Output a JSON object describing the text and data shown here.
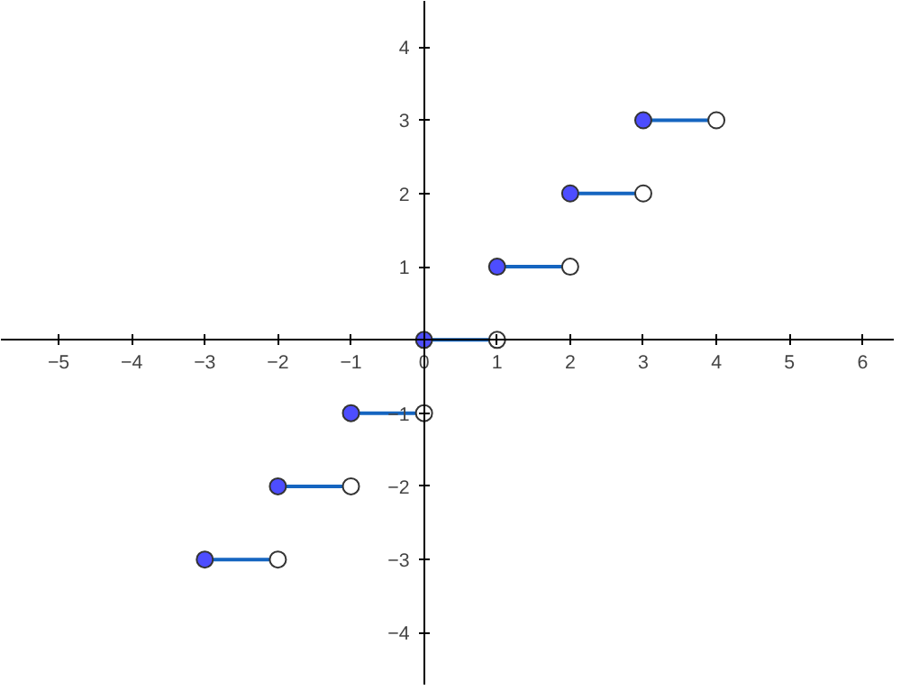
{
  "chart_data": {
    "type": "line",
    "series": [
      {
        "color": "#1565c0",
        "x": [
          -3,
          -2
        ],
        "values": [
          -3,
          -3
        ]
      },
      {
        "color": "#1565c0",
        "x": [
          -2,
          -1
        ],
        "values": [
          -2,
          -2
        ]
      },
      {
        "color": "#1565c0",
        "x": [
          -1,
          0
        ],
        "values": [
          -1,
          -1
        ]
      },
      {
        "color": "#1565c0",
        "x": [
          0,
          1
        ],
        "values": [
          0,
          0
        ]
      },
      {
        "color": "#1565c0",
        "x": [
          1,
          2
        ],
        "values": [
          1,
          1
        ]
      },
      {
        "color": "#1565c0",
        "x": [
          2,
          3
        ],
        "values": [
          2,
          2
        ]
      },
      {
        "color": "#1565c0",
        "x": [
          3,
          4
        ],
        "values": [
          3,
          3
        ]
      },
      {
        "type": "scatter",
        "marker": "circle",
        "color": "#ffffff",
        "x": [
          -2,
          -1,
          0,
          1,
          2,
          3,
          4
        ],
        "values": [
          -3,
          -2,
          -1,
          0,
          1,
          2,
          3
        ]
      },
      {
        "type": "scatter",
        "marker": "circle",
        "color": "#4d4dff",
        "x": [
          -3,
          -2,
          -1,
          0,
          1,
          2,
          3
        ],
        "values": [
          -3,
          -2,
          -1,
          0,
          1,
          2,
          3
        ]
      }
    ],
    "xlim": [
      -5.79,
      6.44
    ],
    "ylim": [
      -4.72,
      4.63
    ],
    "xticks": [
      -5,
      -4,
      -3,
      -2,
      -1,
      0,
      1,
      2,
      3,
      4,
      5,
      6
    ],
    "yticks": [
      -4,
      -3,
      -2,
      -1,
      1,
      2,
      3,
      4
    ],
    "grid": false
  }
}
